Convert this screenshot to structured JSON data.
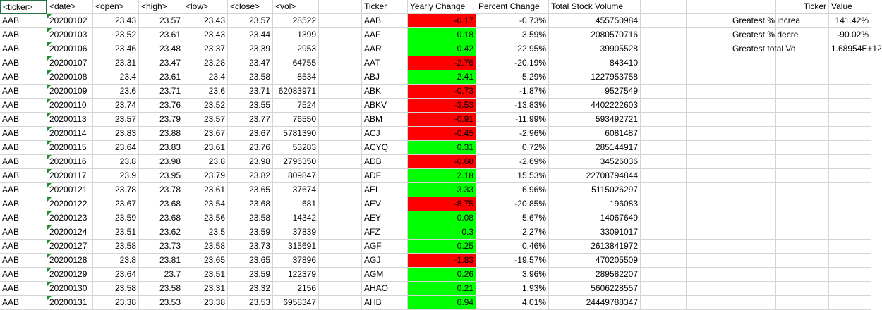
{
  "stock_data": {
    "headers": [
      "<ticker>",
      "<date>",
      "<open>",
      "<high>",
      "<low>",
      "<close>",
      "<vol>"
    ],
    "rows": [
      [
        "AAB",
        "20200102",
        "23.43",
        "23.57",
        "23.43",
        "23.57",
        "28522"
      ],
      [
        "AAB",
        "20200103",
        "23.52",
        "23.61",
        "23.43",
        "23.44",
        "1399"
      ],
      [
        "AAB",
        "20200106",
        "23.46",
        "23.48",
        "23.37",
        "23.39",
        "2953"
      ],
      [
        "AAB",
        "20200107",
        "23.31",
        "23.47",
        "23.28",
        "23.47",
        "64755"
      ],
      [
        "AAB",
        "20200108",
        "23.4",
        "23.61",
        "23.4",
        "23.58",
        "8534"
      ],
      [
        "AAB",
        "20200109",
        "23.6",
        "23.71",
        "23.6",
        "23.71",
        "62083971"
      ],
      [
        "AAB",
        "20200110",
        "23.74",
        "23.76",
        "23.52",
        "23.55",
        "7524"
      ],
      [
        "AAB",
        "20200113",
        "23.57",
        "23.79",
        "23.57",
        "23.77",
        "76550"
      ],
      [
        "AAB",
        "20200114",
        "23.83",
        "23.88",
        "23.67",
        "23.67",
        "5781390"
      ],
      [
        "AAB",
        "20200115",
        "23.64",
        "23.83",
        "23.61",
        "23.76",
        "53283"
      ],
      [
        "AAB",
        "20200116",
        "23.8",
        "23.98",
        "23.8",
        "23.98",
        "2796350"
      ],
      [
        "AAB",
        "20200117",
        "23.9",
        "23.95",
        "23.79",
        "23.82",
        "809847"
      ],
      [
        "AAB",
        "20200121",
        "23.78",
        "23.78",
        "23.61",
        "23.65",
        "37674"
      ],
      [
        "AAB",
        "20200122",
        "23.67",
        "23.68",
        "23.54",
        "23.68",
        "681"
      ],
      [
        "AAB",
        "20200123",
        "23.59",
        "23.68",
        "23.56",
        "23.58",
        "14342"
      ],
      [
        "AAB",
        "20200124",
        "23.51",
        "23.62",
        "23.5",
        "23.59",
        "37839"
      ],
      [
        "AAB",
        "20200127",
        "23.58",
        "23.73",
        "23.58",
        "23.73",
        "315691"
      ],
      [
        "AAB",
        "20200128",
        "23.8",
        "23.81",
        "23.65",
        "23.65",
        "37896"
      ],
      [
        "AAB",
        "20200129",
        "23.64",
        "23.7",
        "23.51",
        "23.59",
        "122379"
      ],
      [
        "AAB",
        "20200130",
        "23.58",
        "23.58",
        "23.31",
        "23.32",
        "2156"
      ],
      [
        "AAB",
        "20200131",
        "23.38",
        "23.53",
        "23.38",
        "23.53",
        "6958347"
      ]
    ]
  },
  "summary": {
    "headers": [
      "Ticker",
      "Yearly Change",
      "Percent Change",
      "Total Stock Volume"
    ],
    "rows": [
      [
        "AAB",
        "-0.17",
        "-0.73%",
        "455750984"
      ],
      [
        "AAF",
        "0.18",
        "3.59%",
        "2080570716"
      ],
      [
        "AAR",
        "0.42",
        "22.95%",
        "39905528"
      ],
      [
        "AAT",
        "-2.76",
        "-20.19%",
        "843410"
      ],
      [
        "ABJ",
        "2.41",
        "5.29%",
        "1227953758"
      ],
      [
        "ABK",
        "-0.73",
        "-1.87%",
        "9527549"
      ],
      [
        "ABKV",
        "-3.53",
        "-13.83%",
        "4402222603"
      ],
      [
        "ABM",
        "-0.91",
        "-11.99%",
        "593492721"
      ],
      [
        "ACJ",
        "-0.45",
        "-2.96%",
        "6081487"
      ],
      [
        "ACYQ",
        "0.31",
        "0.72%",
        "285144917"
      ],
      [
        "ADB",
        "-0.68",
        "-2.69%",
        "34526036"
      ],
      [
        "ADF",
        "2.18",
        "15.53%",
        "22708794844"
      ],
      [
        "AEL",
        "3.33",
        "6.96%",
        "5115026297"
      ],
      [
        "AEV",
        "-8.75",
        "-20.85%",
        "196083"
      ],
      [
        "AEY",
        "0.08",
        "5.67%",
        "14067649"
      ],
      [
        "AFZ",
        "0.3",
        "2.27%",
        "33091017"
      ],
      [
        "AGF",
        "0.25",
        "0.46%",
        "2613841972"
      ],
      [
        "AGJ",
        "-1.83",
        "-19.57%",
        "470205509"
      ],
      [
        "AGM",
        "0.26",
        "3.96%",
        "289582207"
      ],
      [
        "AHAO",
        "0.21",
        "1.93%",
        "5606228557"
      ],
      [
        "AHB",
        "0.94",
        "4.01%",
        "24449788347"
      ]
    ]
  },
  "greatest": {
    "headers": [
      "",
      "Ticker",
      "Value"
    ],
    "rows": [
      [
        "Greatest % increa",
        "",
        "141.42%"
      ],
      [
        "Greatest % decre",
        "",
        "-90.02%"
      ],
      [
        "Greatest total Vo",
        "",
        "1.68954E+12"
      ]
    ]
  },
  "colors": {
    "positive": "#00ff00",
    "negative": "#ff0000",
    "gridline": "#d4d4d4",
    "selection": "#217346",
    "error_triangle": "#1d8f2b"
  }
}
